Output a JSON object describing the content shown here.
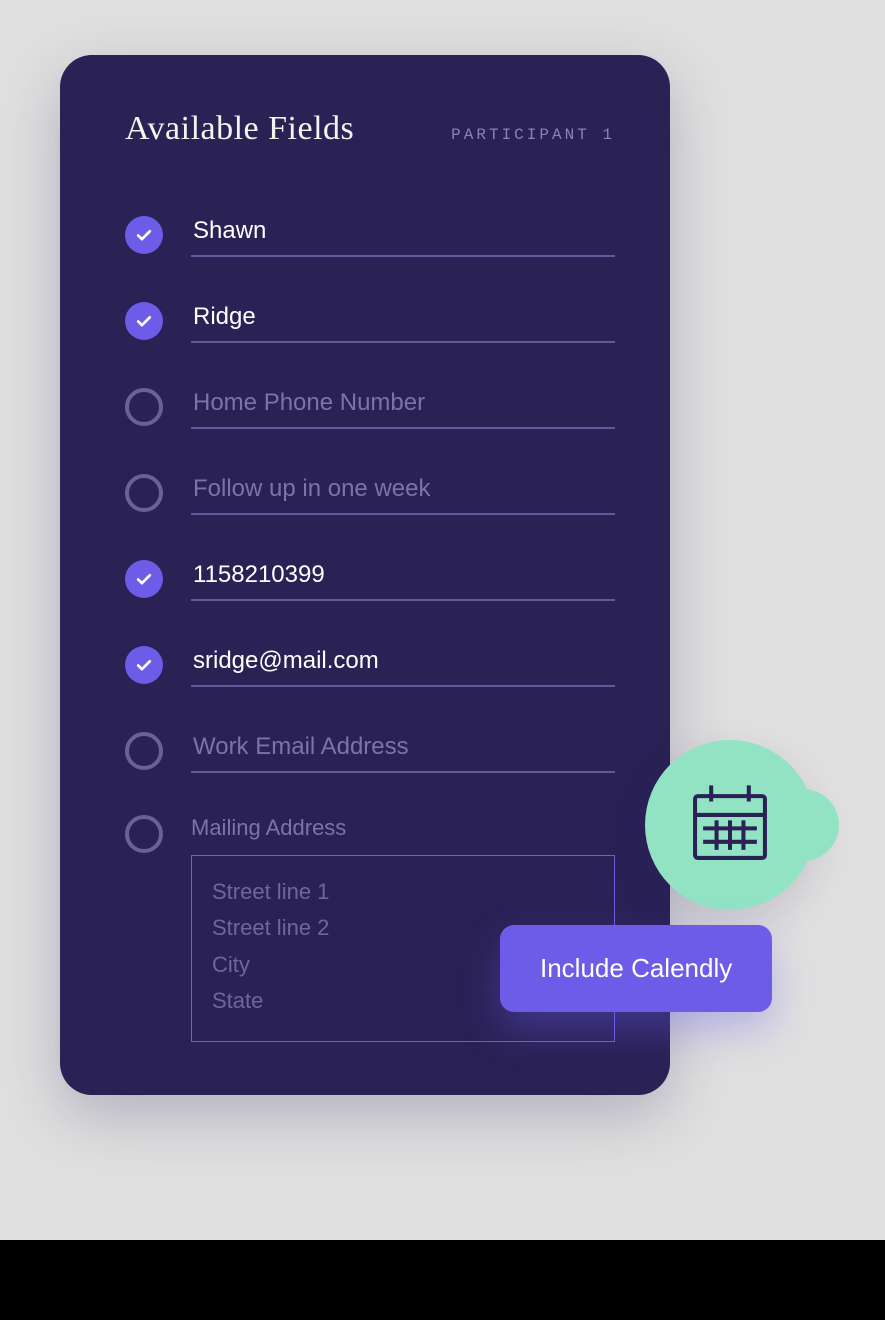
{
  "colors": {
    "page_bg": "#e0e0e0",
    "card_bg": "#2a2155",
    "accent": "#6c5ce7",
    "mint": "#92e3c4",
    "text_light": "#f5f3ef",
    "text_muted": "#7b73aa",
    "underline": "#645a9a",
    "ring_empty": "#6a6296",
    "bottom_bar": "#000000"
  },
  "card": {
    "title": "Available Fields",
    "subtitle": "PARTICIPANT 1",
    "fields": [
      {
        "id": "first-name",
        "checked": true,
        "value": "Shawn",
        "placeholder": ""
      },
      {
        "id": "last-name",
        "checked": true,
        "value": "Ridge",
        "placeholder": ""
      },
      {
        "id": "home-phone",
        "checked": false,
        "value": "",
        "placeholder": "Home Phone Number"
      },
      {
        "id": "follow-up",
        "checked": false,
        "value": "",
        "placeholder": "Follow up in one week"
      },
      {
        "id": "id-number",
        "checked": true,
        "value": "1158210399",
        "placeholder": ""
      },
      {
        "id": "email",
        "checked": true,
        "value": "sridge@mail.com",
        "placeholder": ""
      },
      {
        "id": "work-email",
        "checked": false,
        "value": "",
        "placeholder": "Work Email Address"
      }
    ],
    "mailing_address": {
      "checked": false,
      "label": "Mailing Address",
      "lines": [
        "Street line 1",
        "Street line 2",
        "City",
        "State"
      ]
    }
  },
  "fab": {
    "icon": "calendar-icon"
  },
  "cta": {
    "label": "Include Calendly"
  }
}
